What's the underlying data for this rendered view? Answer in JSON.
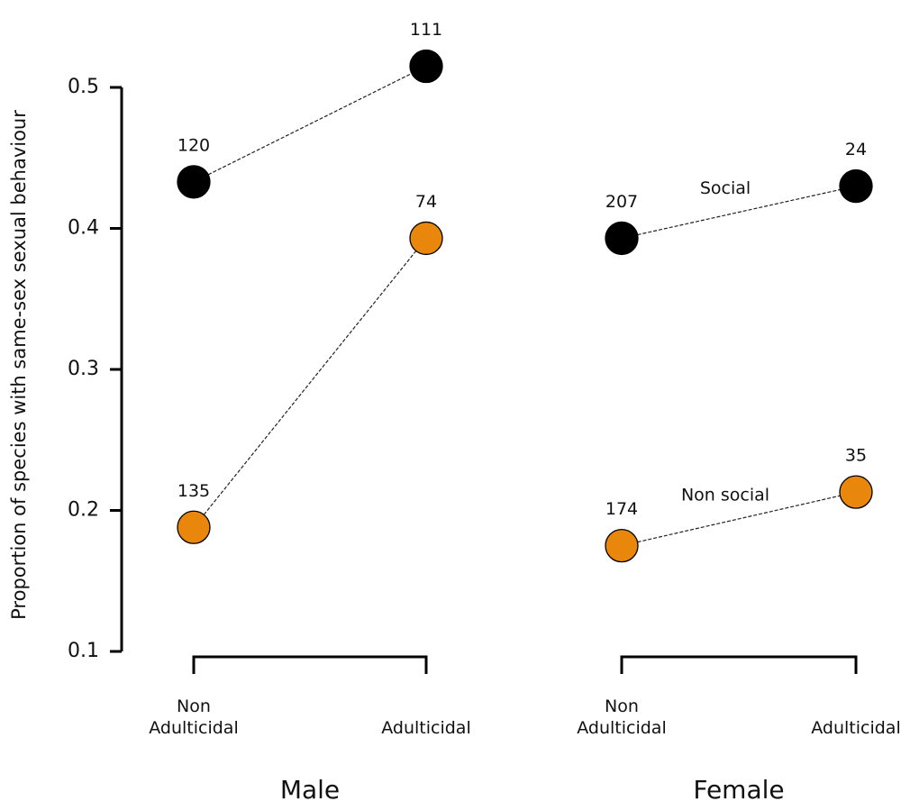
{
  "chart_data": {
    "type": "line",
    "ylabel": "Proportion of species with same-sex sexual behaviour",
    "ylim": [
      0.1,
      0.5
    ],
    "yticks": [
      0.1,
      0.2,
      0.3,
      0.4,
      0.5
    ],
    "groups": [
      "Male",
      "Female"
    ],
    "categories": [
      "Non Adulticidal",
      "Adulticidal",
      "Non Adulticidal",
      "Adulticidal"
    ],
    "series": [
      {
        "name": "Social",
        "color": "#000000",
        "values": [
          0.433,
          0.515,
          0.393,
          0.43
        ],
        "sample_sizes": [
          120,
          111,
          207,
          24
        ]
      },
      {
        "name": "Non social",
        "color": "#e8870c",
        "values": [
          0.188,
          0.393,
          0.175,
          0.213
        ],
        "sample_sizes": [
          135,
          74,
          174,
          35
        ]
      }
    ]
  }
}
